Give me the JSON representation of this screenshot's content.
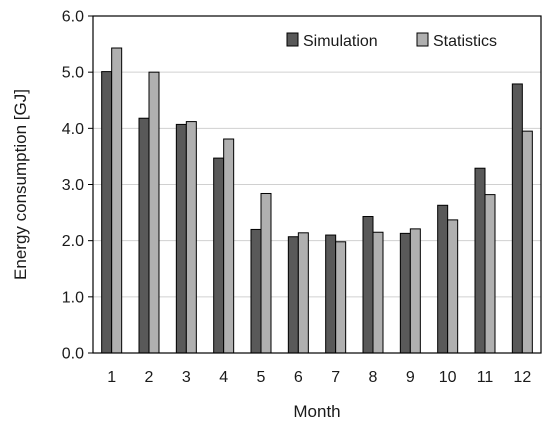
{
  "chart_data": {
    "type": "bar",
    "title": "",
    "xlabel": "Month",
    "ylabel": "Energy consumption [GJ]",
    "ylim": [
      0,
      6
    ],
    "ytick_step": 1,
    "grid": true,
    "legend_position": "top-right",
    "categories": [
      "1",
      "2",
      "3",
      "4",
      "5",
      "6",
      "7",
      "8",
      "9",
      "10",
      "11",
      "12"
    ],
    "series": [
      {
        "name": "Simulation",
        "color": "#595959",
        "values": [
          5.01,
          4.18,
          4.07,
          3.47,
          2.2,
          2.07,
          2.1,
          2.43,
          2.13,
          2.63,
          3.29,
          4.79
        ]
      },
      {
        "name": "Statistics",
        "color": "#b0b0b0",
        "values": [
          5.43,
          5.0,
          4.12,
          3.81,
          2.84,
          2.14,
          1.98,
          2.15,
          2.21,
          2.37,
          2.82,
          3.95
        ]
      }
    ],
    "ytick_labels": [
      "0.0",
      "1.0",
      "2.0",
      "3.0",
      "4.0",
      "5.0",
      "6.0"
    ]
  }
}
